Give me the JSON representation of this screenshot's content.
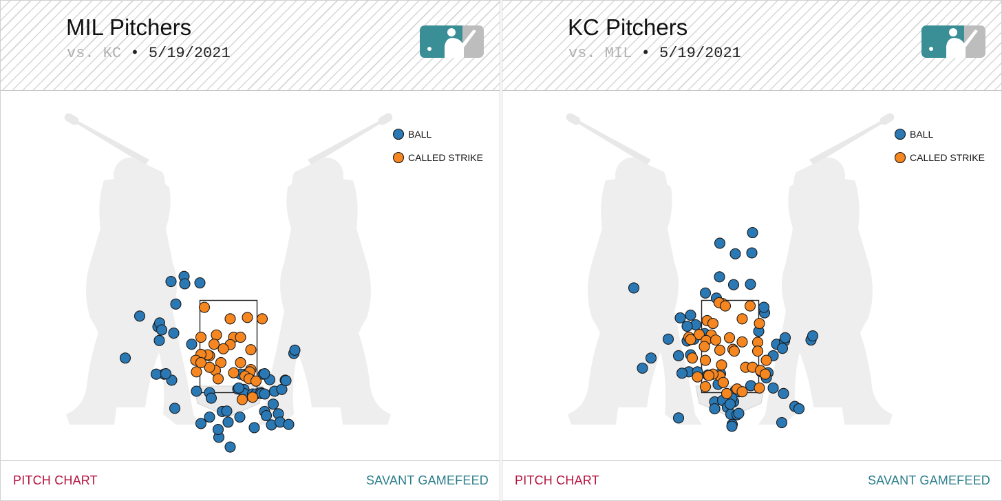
{
  "colors": {
    "ball": "#2a78b4",
    "called_strike": "#f6861f",
    "footer_left": "#b5123e",
    "footer_right": "#2a7d8a",
    "logo_teal": "#3a8e96",
    "logo_gray": "#bdbdbd"
  },
  "panels": [
    {
      "title": "MIL Pitchers",
      "opponent": "vs. KC",
      "separator": "•",
      "date": "5/19/2021",
      "footer_left": "PITCH CHART",
      "footer_right": "SAVANT GAMEFEED"
    },
    {
      "title": "KC Pitchers",
      "opponent": "vs. MIL",
      "separator": "•",
      "date": "5/19/2021",
      "footer_left": "PITCH CHART",
      "footer_right": "SAVANT GAMEFEED"
    }
  ],
  "chart_data": [
    {
      "type": "scatter",
      "title": "MIL Pitchers",
      "legend": [
        "BALL",
        "CALLED STRIKE"
      ],
      "legend_position": "top-right",
      "strike_zone": {
        "x": [
          -0.83,
          0.83
        ],
        "z": [
          1.5,
          3.5
        ]
      },
      "xlim": [
        -4.25,
        4.25
      ],
      "ylim": [
        -1.0,
        6.25
      ],
      "series": [
        {
          "name": "BALL",
          "points": [
            [
              -1.67,
              3.91
            ],
            [
              -1.29,
              4.02
            ],
            [
              -1.27,
              3.86
            ],
            [
              -0.83,
              3.88
            ],
            [
              -1.53,
              3.42
            ],
            [
              -2.58,
              3.16
            ],
            [
              -2.05,
              2.93
            ],
            [
              -2.0,
              3.01
            ],
            [
              -1.94,
              2.86
            ],
            [
              -1.59,
              2.79
            ],
            [
              -2.01,
              2.63
            ],
            [
              -3.0,
              2.25
            ],
            [
              -1.07,
              2.55
            ],
            [
              -1.87,
              1.9
            ],
            [
              -2.1,
              1.9
            ],
            [
              -1.65,
              1.77
            ],
            [
              -1.82,
              1.91
            ],
            [
              -0.93,
              1.53
            ],
            [
              -0.55,
              1.5
            ],
            [
              -0.5,
              1.38
            ],
            [
              0.27,
              1.58
            ],
            [
              0.45,
              1.57
            ],
            [
              0.45,
              1.48
            ],
            [
              0.7,
              1.47
            ],
            [
              0.8,
              1.47
            ],
            [
              0.94,
              1.5
            ],
            [
              1.2,
              1.78
            ],
            [
              1.01,
              1.9
            ],
            [
              1.05,
              1.91
            ],
            [
              0.97,
              1.48
            ],
            [
              1.05,
              1.47
            ],
            [
              1.34,
              1.53
            ],
            [
              1.55,
              1.57
            ],
            [
              1.65,
              1.77
            ],
            [
              1.67,
              1.76
            ],
            [
              1.9,
              2.35
            ],
            [
              1.93,
              2.42
            ],
            [
              0.5,
              1.9
            ],
            [
              0.35,
              1.9
            ],
            [
              0.6,
              1.85
            ],
            [
              0.3,
              1.6
            ],
            [
              -1.56,
              1.16
            ],
            [
              -0.55,
              0.97
            ],
            [
              -0.8,
              0.83
            ],
            [
              -0.18,
              1.09
            ],
            [
              -0.05,
              1.1
            ],
            [
              -0.01,
              0.86
            ],
            [
              0.33,
              0.97
            ],
            [
              0.75,
              0.74
            ],
            [
              1.05,
              1.09
            ],
            [
              1.3,
              1.25
            ],
            [
              1.45,
              1.04
            ],
            [
              1.1,
              1.0
            ],
            [
              1.25,
              0.8
            ],
            [
              1.5,
              0.86
            ],
            [
              1.75,
              0.81
            ],
            [
              -0.28,
              0.53
            ],
            [
              -0.3,
              0.7
            ],
            [
              0.05,
              0.32
            ],
            [
              -0.5,
              -0.15
            ],
            [
              0.85,
              -0.58
            ]
          ]
        },
        {
          "name": "CALLED STRIKE",
          "points": [
            [
              -0.7,
              3.35
            ],
            [
              0.05,
              3.1
            ],
            [
              0.55,
              3.13
            ],
            [
              0.98,
              3.1
            ],
            [
              -0.8,
              2.7
            ],
            [
              -0.35,
              2.75
            ],
            [
              0.15,
              2.7
            ],
            [
              0.35,
              2.7
            ],
            [
              0.05,
              2.54
            ],
            [
              -0.42,
              2.55
            ],
            [
              -0.15,
              2.45
            ],
            [
              0.65,
              2.43
            ],
            [
              -0.55,
              2.3
            ],
            [
              -0.6,
              2.32
            ],
            [
              -0.8,
              2.33
            ],
            [
              -0.22,
              2.15
            ],
            [
              0.35,
              2.15
            ],
            [
              -0.95,
              2.2
            ],
            [
              0.65,
              2.0
            ],
            [
              -0.38,
              1.98
            ],
            [
              0.15,
              1.93
            ],
            [
              0.62,
              1.95
            ],
            [
              0.48,
              1.86
            ],
            [
              -0.93,
              1.95
            ],
            [
              -0.55,
              2.05
            ],
            [
              -0.8,
              2.15
            ],
            [
              -0.3,
              1.8
            ],
            [
              0.6,
              1.8
            ],
            [
              0.8,
              1.75
            ],
            [
              0.4,
              1.35
            ],
            [
              0.7,
              1.4
            ]
          ]
        }
      ]
    },
    {
      "type": "scatter",
      "title": "KC Pitchers",
      "legend": [
        "BALL",
        "CALLED STRIKE"
      ],
      "legend_position": "top-right",
      "strike_zone": {
        "x": [
          -0.83,
          0.83
        ],
        "z": [
          1.5,
          3.5
        ]
      },
      "xlim": [
        -4.25,
        4.25
      ],
      "ylim": [
        -1.0,
        6.25
      ],
      "series": [
        {
          "name": "BALL",
          "points": [
            [
              0.65,
              4.97
            ],
            [
              -0.3,
              4.74
            ],
            [
              0.15,
              4.51
            ],
            [
              0.63,
              4.53
            ],
            [
              -0.31,
              4.01
            ],
            [
              0.1,
              3.84
            ],
            [
              0.59,
              3.85
            ],
            [
              -0.72,
              3.66
            ],
            [
              -0.4,
              3.55
            ],
            [
              -1.15,
              3.18
            ],
            [
              -1.0,
              2.97
            ],
            [
              -1.45,
              3.12
            ],
            [
              -1.25,
              2.94
            ],
            [
              -0.74,
              2.78
            ],
            [
              -1.05,
              2.66
            ],
            [
              -1.25,
              2.62
            ],
            [
              -1.8,
              2.66
            ],
            [
              -2.8,
              3.77
            ],
            [
              -2.3,
              2.25
            ],
            [
              -2.55,
              2.03
            ],
            [
              -1.5,
              2.3
            ],
            [
              -1.15,
              2.32
            ],
            [
              -1.2,
              1.95
            ],
            [
              -1.4,
              1.92
            ],
            [
              -0.95,
              1.95
            ],
            [
              -0.65,
              1.88
            ],
            [
              -0.28,
              1.91
            ],
            [
              -0.35,
              1.68
            ],
            [
              0.15,
              1.54
            ],
            [
              0.25,
              1.52
            ],
            [
              0.6,
              1.65
            ],
            [
              0.83,
              2.83
            ],
            [
              1.0,
              3.23
            ],
            [
              0.98,
              3.35
            ],
            [
              1.35,
              2.55
            ],
            [
              1.58,
              2.62
            ],
            [
              1.6,
              2.69
            ],
            [
              2.35,
              2.64
            ],
            [
              2.4,
              2.73
            ],
            [
              1.52,
              2.46
            ],
            [
              1.25,
              2.3
            ],
            [
              0.9,
              1.95
            ],
            [
              1.1,
              1.93
            ],
            [
              1.05,
              1.82
            ],
            [
              1.25,
              1.6
            ],
            [
              1.55,
              1.48
            ],
            [
              0.1,
              1.3
            ],
            [
              0.05,
              1.38
            ],
            [
              -0.45,
              1.3
            ],
            [
              -0.45,
              1.15
            ],
            [
              -0.22,
              1.33
            ],
            [
              -0.08,
              1.18
            ],
            [
              0.02,
              1.03
            ],
            [
              0.2,
              1.02
            ],
            [
              0.25,
              1.05
            ],
            [
              0.0,
              1.25
            ],
            [
              1.88,
              1.2
            ],
            [
              2.0,
              1.15
            ],
            [
              1.5,
              0.85
            ],
            [
              0.06,
              0.81
            ],
            [
              0.05,
              0.77
            ],
            [
              -1.5,
              0.95
            ],
            [
              0.8,
              -0.18
            ]
          ]
        },
        {
          "name": "CALLED STRIKE",
          "points": [
            [
              -0.22,
              3.43
            ],
            [
              -0.32,
              3.45
            ],
            [
              -0.14,
              3.38
            ],
            [
              0.58,
              3.38
            ],
            [
              -0.67,
              3.06
            ],
            [
              -0.5,
              3.0
            ],
            [
              0.35,
              3.1
            ],
            [
              0.85,
              3.0
            ],
            [
              -0.9,
              2.76
            ],
            [
              -1.2,
              2.7
            ],
            [
              -1.15,
              2.65
            ],
            [
              -0.55,
              2.75
            ],
            [
              -0.7,
              2.63
            ],
            [
              -0.42,
              2.64
            ],
            [
              -0.02,
              2.69
            ],
            [
              0.35,
              2.6
            ],
            [
              0.8,
              2.59
            ],
            [
              -0.75,
              2.5
            ],
            [
              -1.1,
              2.25
            ],
            [
              0.08,
              2.44
            ],
            [
              -0.3,
              2.42
            ],
            [
              0.12,
              2.4
            ],
            [
              0.8,
              2.4
            ],
            [
              1.05,
              2.2
            ],
            [
              -0.72,
              2.2
            ],
            [
              -0.25,
              2.1
            ],
            [
              0.45,
              2.05
            ],
            [
              0.65,
              2.05
            ],
            [
              -0.3,
              1.86
            ],
            [
              -0.5,
              1.9
            ],
            [
              -0.95,
              1.84
            ],
            [
              -0.2,
              1.72
            ],
            [
              0.88,
              1.98
            ],
            [
              1.02,
              1.9
            ],
            [
              -0.62,
              1.87
            ],
            [
              -0.72,
              1.63
            ],
            [
              0.2,
              1.58
            ],
            [
              0.85,
              1.6
            ],
            [
              0.35,
              1.52
            ],
            [
              -0.1,
              1.48
            ]
          ]
        }
      ]
    }
  ]
}
